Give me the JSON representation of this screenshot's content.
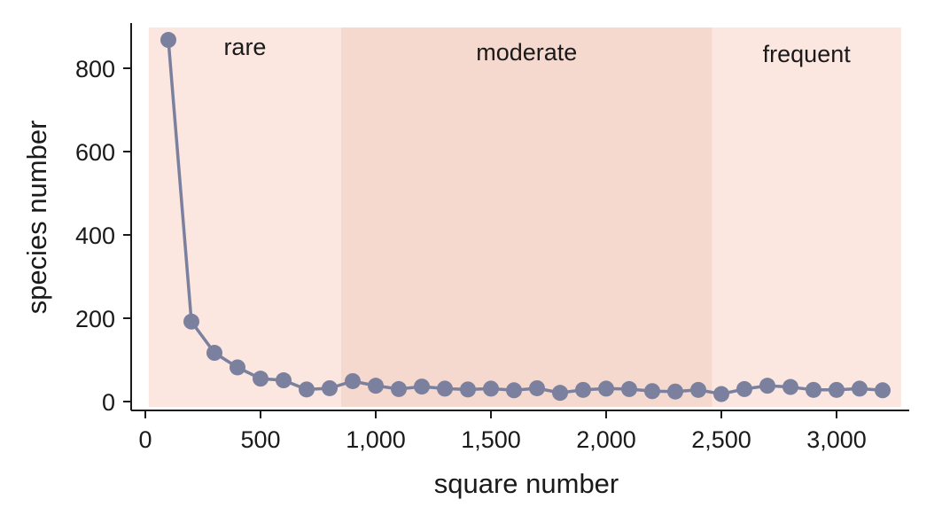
{
  "chart_data": {
    "type": "line",
    "title": "",
    "xlabel": "square number",
    "ylabel": "species number",
    "xlim": [
      0,
      3300
    ],
    "ylim": [
      0,
      900
    ],
    "x_ticks": [
      0,
      500,
      1000,
      1500,
      2000,
      2500,
      3000
    ],
    "x_tick_labels": [
      "0",
      "500",
      "1,000",
      "1,500",
      "2,000",
      "2,500",
      "3,000"
    ],
    "y_ticks": [
      0,
      200,
      400,
      600,
      800
    ],
    "y_tick_labels": [
      "0",
      "200",
      "400",
      "600",
      "800"
    ],
    "grid": false,
    "regions": [
      {
        "label": "rare",
        "from": 15,
        "to": 850,
        "color": "#fce6e0"
      },
      {
        "label": "moderate",
        "from": 850,
        "to": 2460,
        "color": "#f5d8ce"
      },
      {
        "label": "frequent",
        "from": 2460,
        "to": 3280,
        "color": "#fce6e0"
      }
    ],
    "series": [
      {
        "color": "#7a809e",
        "x": [
          100,
          200,
          300,
          400,
          500,
          600,
          700,
          800,
          900,
          1000,
          1100,
          1200,
          1300,
          1400,
          1500,
          1600,
          1700,
          1800,
          1900,
          2000,
          2100,
          2200,
          2300,
          2400,
          2500,
          2600,
          2700,
          2800,
          2900,
          3000,
          3100,
          3200
        ],
        "y": [
          868,
          192,
          117,
          82,
          55,
          51,
          29,
          32,
          49,
          38,
          30,
          36,
          31,
          29,
          31,
          27,
          32,
          21,
          28,
          31,
          30,
          25,
          24,
          28,
          18,
          30,
          38,
          35,
          28,
          28,
          31,
          27
        ]
      }
    ]
  }
}
